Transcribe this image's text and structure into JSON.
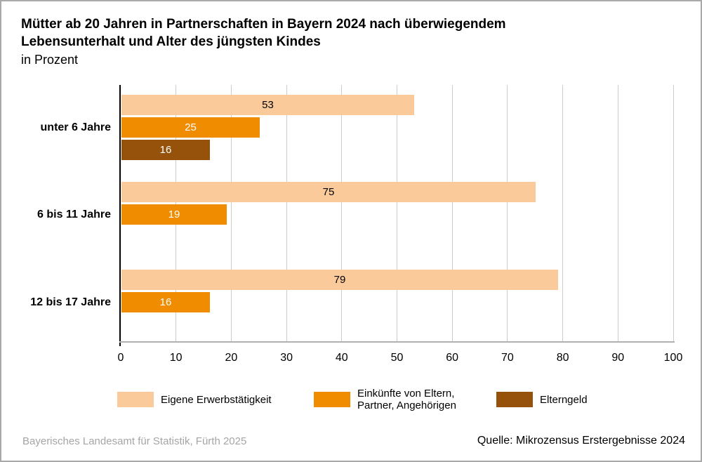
{
  "title": {
    "line1": "Mütter ab 20 Jahren in Partnerschaften in Bayern 2024 nach überwiegendem",
    "line2": "Lebensunterhalt und Alter des jüngsten Kindes",
    "subtitle": "in Prozent"
  },
  "chart_data": {
    "type": "bar",
    "orientation": "horizontal",
    "title": "Mütter ab 20 Jahren in Partnerschaften in Bayern 2024 nach überwiegendem Lebensunterhalt und Alter des jüngsten Kindes",
    "subtitle": "in Prozent",
    "categories": [
      "unter 6 Jahre",
      "6 bis 11 Jahre",
      "12 bis 17 Jahre"
    ],
    "series": [
      {
        "name": "Eigene Erwerbstätigkeit",
        "color": "#FACA9B",
        "label_color": "#000000",
        "values": [
          53,
          75,
          79
        ]
      },
      {
        "name": "Einkünfte von Eltern, Partner, Angehörigen",
        "color": "#F08C00",
        "label_color": "#FFFFFF",
        "values": [
          25,
          19,
          16
        ]
      },
      {
        "name": "Elterngeld",
        "color": "#96520A",
        "label_color": "#FFFFFF",
        "values": [
          16,
          null,
          null
        ]
      }
    ],
    "xlim": [
      0,
      100
    ],
    "xticks": [
      0,
      10,
      20,
      30,
      40,
      50,
      60,
      70,
      80,
      90,
      100
    ],
    "grid": true,
    "legend_position": "bottom"
  },
  "footer": {
    "left": "Bayerisches Landesamt für Statistik, Fürth 2025",
    "right": "Quelle: Mikrozensus Erstergebnisse 2024"
  }
}
